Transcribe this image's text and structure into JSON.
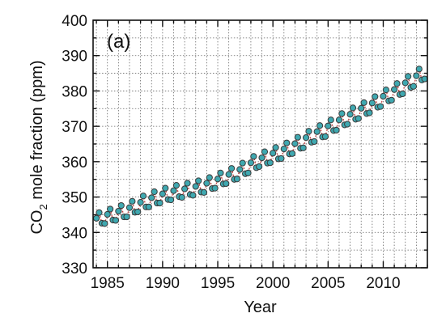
{
  "chart_data": {
    "type": "scatter",
    "panel_label": "(a)",
    "xlabel": "Year",
    "ylabel_main": "CO",
    "ylabel_sub": "2",
    "ylabel_rest": " mole fraction (ppm)",
    "xlim": [
      1983.7,
      2014.0
    ],
    "ylim": [
      330,
      400
    ],
    "xticks": [
      1985,
      1990,
      1995,
      2000,
      2005,
      2010
    ],
    "xtick_labels": [
      "1985",
      "1990",
      "1995",
      "2000",
      "2005",
      "2010"
    ],
    "yticks": [
      330,
      340,
      350,
      360,
      370,
      380,
      390,
      400
    ],
    "ytick_labels": [
      "330",
      "340",
      "350",
      "360",
      "370",
      "380",
      "390",
      "400"
    ],
    "minor_xticks_per_major": 5,
    "minor_yticks_per_major": 2,
    "grid": true,
    "colors": {
      "points": "#3fa8b0",
      "point_edge": "#3a3a3a",
      "trend": "#c04040"
    },
    "series": [
      {
        "x": [
          1984.0,
          1984.25,
          1984.5,
          1984.75,
          1985.0,
          1985.25,
          1985.5,
          1985.75,
          1986.0,
          1986.25,
          1986.5,
          1986.75,
          1987.0,
          1987.25,
          1987.5,
          1987.75,
          1988.0,
          1988.25,
          1988.5,
          1988.75,
          1989.0,
          1989.25,
          1989.5,
          1989.75,
          1990.0,
          1990.25,
          1990.5,
          1990.75,
          1991.0,
          1991.25,
          1991.5,
          1991.75,
          1992.0,
          1992.25,
          1992.5,
          1992.75,
          1993.0,
          1993.25,
          1993.5,
          1993.75,
          1994.0,
          1994.25,
          1994.5,
          1994.75,
          1995.0,
          1995.25,
          1995.5,
          1995.75,
          1996.0,
          1996.25,
          1996.5,
          1996.75,
          1997.0,
          1997.25,
          1997.5,
          1997.75,
          1998.0,
          1998.25,
          1998.5,
          1998.75,
          1999.0,
          1999.25,
          1999.5,
          1999.75,
          2000.0,
          2000.25,
          2000.5,
          2000.75,
          2001.0,
          2001.25,
          2001.5,
          2001.75,
          2002.0,
          2002.25,
          2002.5,
          2002.75,
          2003.0,
          2003.25,
          2003.5,
          2003.75,
          2004.0,
          2004.25,
          2004.5,
          2004.75,
          2005.0,
          2005.25,
          2005.5,
          2005.75,
          2006.0,
          2006.25,
          2006.5,
          2006.75,
          2007.0,
          2007.25,
          2007.5,
          2007.75,
          2008.0,
          2008.25,
          2008.5,
          2008.75,
          2009.0,
          2009.25,
          2009.5,
          2009.75,
          2010.0,
          2010.25,
          2010.5,
          2010.75,
          2011.0,
          2011.25,
          2011.5,
          2011.75,
          2012.0,
          2012.25,
          2012.5,
          2012.75,
          2013.0,
          2013.25,
          2013.5,
          2013.75
        ],
        "y": [
          344.0,
          345.6,
          342.6,
          342.5,
          345.1,
          346.6,
          343.5,
          343.4,
          346.0,
          347.6,
          344.4,
          344.4,
          347.0,
          348.8,
          345.7,
          345.8,
          348.5,
          350.3,
          347.2,
          347.2,
          349.8,
          351.5,
          348.3,
          348.3,
          350.9,
          352.5,
          349.3,
          349.2,
          351.8,
          353.3,
          350.1,
          349.9,
          352.3,
          353.9,
          350.7,
          350.5,
          353.0,
          354.6,
          351.4,
          351.3,
          353.9,
          355.5,
          352.4,
          352.5,
          355.1,
          356.8,
          353.7,
          353.8,
          356.4,
          358.1,
          355.0,
          355.1,
          357.8,
          359.6,
          356.6,
          356.8,
          359.7,
          361.5,
          358.3,
          358.6,
          361.1,
          362.8,
          359.6,
          359.7,
          362.4,
          364.0,
          360.8,
          360.9,
          363.6,
          365.3,
          362.2,
          362.3,
          365.1,
          366.9,
          363.8,
          363.9,
          366.8,
          368.6,
          365.5,
          365.7,
          368.5,
          370.2,
          367.0,
          367.1,
          370.1,
          371.8,
          368.8,
          368.9,
          371.8,
          373.6,
          370.4,
          370.6,
          373.4,
          375.2,
          372.0,
          372.2,
          375.1,
          376.7,
          373.6,
          373.8,
          376.6,
          378.4,
          375.4,
          375.6,
          378.5,
          380.3,
          377.2,
          377.4,
          380.4,
          382.1,
          379.0,
          379.2,
          382.3,
          384.1,
          381.0,
          381.3,
          384.3,
          386.2,
          383.1,
          383.4
        ]
      }
    ]
  }
}
